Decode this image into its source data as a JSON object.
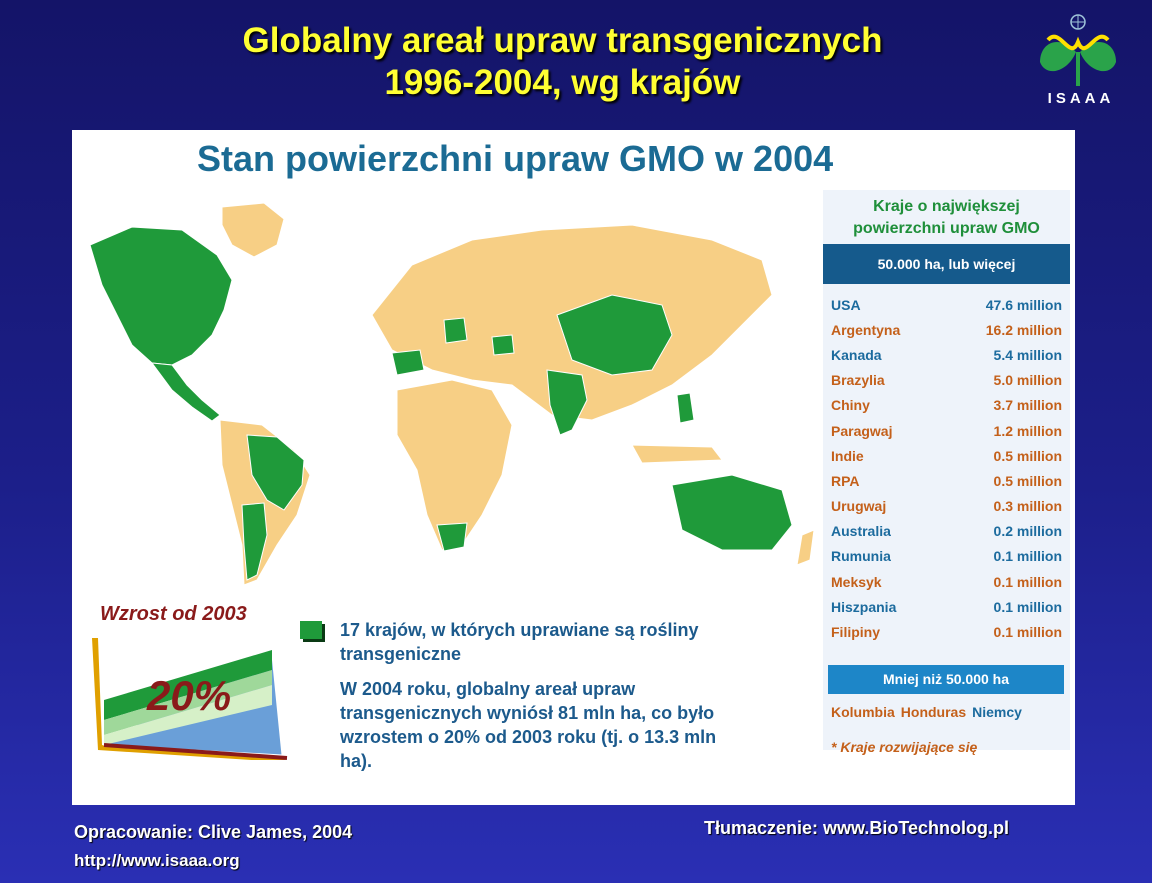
{
  "slide": {
    "title_line1": "Globalny areał upraw transgenicznych",
    "title_line2": "1996-2004, wg krajów",
    "logo_text": "ISAAA",
    "logo_icon": "isaaa-leaf-logo-icon"
  },
  "panel": {
    "title": "Stan powierzchni upraw GMO w 2004",
    "sidebar": {
      "heading_line1": "Kraje o największej",
      "heading_line2": "powierzchni upraw GMO",
      "band_label": "50.000 ha, lub więcej",
      "countries": [
        {
          "name": "USA",
          "value": "47.6 million",
          "color": "blue"
        },
        {
          "name": "Argentyna",
          "value": "16.2 million",
          "color": "orange"
        },
        {
          "name": "Kanada",
          "value": "5.4 million",
          "color": "blue"
        },
        {
          "name": "Brazylia",
          "value": "5.0 million",
          "color": "orange"
        },
        {
          "name": "Chiny",
          "value": "3.7 million",
          "color": "orange"
        },
        {
          "name": "Paragwaj",
          "value": "1.2 million",
          "color": "orange"
        },
        {
          "name": "Indie",
          "value": "0.5 million",
          "color": "orange"
        },
        {
          "name": "RPA",
          "value": "0.5 million",
          "color": "orange"
        },
        {
          "name": "Urugwaj",
          "value": "0.3 million",
          "color": "orange"
        },
        {
          "name": "Australia",
          "value": "0.2 million",
          "color": "blue"
        },
        {
          "name": "Rumunia",
          "value": "0.1 million",
          "color": "blue"
        },
        {
          "name": "Meksyk",
          "value": "0.1 million",
          "color": "orange"
        },
        {
          "name": "Hiszpania",
          "value": "0.1 million",
          "color": "blue"
        },
        {
          "name": "Filipiny",
          "value": "0.1 million",
          "color": "orange"
        }
      ],
      "less_band_label": "Mniej niż 50.000 ha",
      "small_countries": [
        {
          "name": "Kolumbia",
          "color": "orange"
        },
        {
          "name": "Honduras",
          "color": "orange"
        },
        {
          "name": "Niemcy",
          "color": "blue"
        }
      ],
      "footnote": "* Kraje rozwijające się"
    },
    "growth": {
      "label": "Wzrost od 2003",
      "percent": "20%"
    },
    "legend": {
      "text": "17 krajów, w których uprawiane są rośliny transgeniczne"
    },
    "summary": {
      "text": "W 2004 roku, globalny areał upraw transgenicznych wyniósł 81 mln ha, co było wzrostem o 20% od 2003 roku (tj. o 13.3 mln ha)."
    }
  },
  "footer": {
    "source": "Opracowanie: Clive James, 2004",
    "url": "http://www.isaaa.org",
    "translation": "Tłumaczenie: www.BioTechnolog.pl"
  },
  "colors": {
    "background": "#1c1f8a",
    "title": "#ffff33",
    "gmo_country": "#1f9a3a",
    "other_land": "#f7cf85",
    "panel_title": "#1b6b94",
    "band": "#155a8c"
  }
}
